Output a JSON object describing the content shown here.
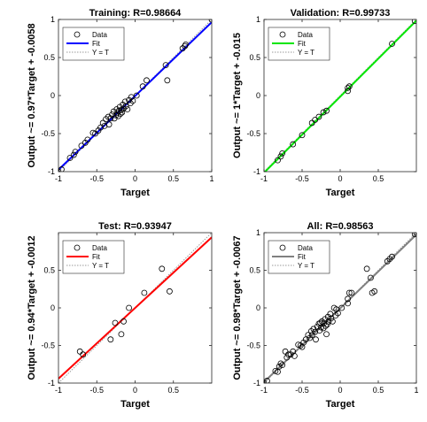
{
  "chart_data": [
    {
      "type": "scatter",
      "title": "Training: R=0.98664",
      "xlabel": "Target",
      "ylabel": "Output ~= 0.97*Target + -0.0058",
      "xlim": [
        -1,
        1
      ],
      "ylim": [
        -1,
        1
      ],
      "xticks": [
        "-1",
        "-0.5",
        "0",
        "0.5",
        "1"
      ],
      "yticks": [
        "-1",
        "-0.5",
        "0",
        "0.5",
        "1"
      ],
      "fit_color": "#0000ff",
      "fit": {
        "slope": 0.97,
        "intercept": -0.0058
      },
      "legend": [
        "Data",
        "Fit",
        "Y = T"
      ],
      "points": [
        [
          -1,
          -1
        ],
        [
          -0.96,
          -0.97
        ],
        [
          -0.85,
          -0.82
        ],
        [
          -0.8,
          -0.78
        ],
        [
          -0.78,
          -0.74
        ],
        [
          -0.7,
          -0.66
        ],
        [
          -0.65,
          -0.62
        ],
        [
          -0.62,
          -0.58
        ],
        [
          -0.55,
          -0.49
        ],
        [
          -0.52,
          -0.5
        ],
        [
          -0.48,
          -0.46
        ],
        [
          -0.45,
          -0.42
        ],
        [
          -0.42,
          -0.36
        ],
        [
          -0.4,
          -0.4
        ],
        [
          -0.38,
          -0.31
        ],
        [
          -0.35,
          -0.28
        ],
        [
          -0.34,
          -0.38
        ],
        [
          -0.32,
          -0.3
        ],
        [
          -0.3,
          -0.25
        ],
        [
          -0.28,
          -0.21
        ],
        [
          -0.27,
          -0.3
        ],
        [
          -0.25,
          -0.26
        ],
        [
          -0.24,
          -0.18
        ],
        [
          -0.23,
          -0.23
        ],
        [
          -0.22,
          -0.27
        ],
        [
          -0.21,
          -0.2
        ],
        [
          -0.2,
          -0.15
        ],
        [
          -0.19,
          -0.24
        ],
        [
          -0.18,
          -0.19
        ],
        [
          -0.17,
          -0.22
        ],
        [
          -0.16,
          -0.12
        ],
        [
          -0.15,
          -0.17
        ],
        [
          -0.13,
          -0.08
        ],
        [
          -0.12,
          -0.14
        ],
        [
          -0.1,
          -0.18
        ],
        [
          -0.08,
          -0.06
        ],
        [
          -0.06,
          -0.1
        ],
        [
          -0.05,
          -0.02
        ],
        [
          -0.03,
          -0.07
        ],
        [
          0.02,
          0.0
        ],
        [
          0.1,
          0.12
        ],
        [
          0.15,
          0.2
        ],
        [
          0.4,
          0.4
        ],
        [
          0.42,
          0.2
        ],
        [
          0.62,
          0.62
        ],
        [
          0.65,
          0.65
        ],
        [
          0.66,
          0.67
        ],
        [
          1,
          1
        ]
      ]
    },
    {
      "type": "scatter",
      "title": "Validation: R=0.99733",
      "xlabel": "Target",
      "ylabel": "Output ~= 1*Target + -0.015",
      "xlim": [
        -1,
        1
      ],
      "ylim": [
        -1,
        1
      ],
      "xticks": [
        "-1",
        "-0.5",
        "0",
        "0.5"
      ],
      "yticks": [
        "-1",
        "-0.5",
        "0",
        "0.5",
        "1"
      ],
      "fit_color": "#00e600",
      "fit": {
        "slope": 1,
        "intercept": -0.015
      },
      "legend": [
        "Data",
        "Fit",
        "Y = T"
      ],
      "points": [
        [
          -0.82,
          -0.85
        ],
        [
          -0.78,
          -0.8
        ],
        [
          -0.76,
          -0.76
        ],
        [
          -0.62,
          -0.64
        ],
        [
          -0.5,
          -0.52
        ],
        [
          -0.37,
          -0.36
        ],
        [
          -0.33,
          -0.32
        ],
        [
          -0.28,
          -0.28
        ],
        [
          -0.22,
          -0.22
        ],
        [
          -0.18,
          -0.2
        ],
        [
          0.1,
          0.06
        ],
        [
          0.1,
          0.1
        ],
        [
          0.12,
          0.12
        ],
        [
          0.68,
          0.68
        ],
        [
          0.98,
          0.98
        ]
      ]
    },
    {
      "type": "scatter",
      "title": "Test: R=0.93947",
      "xlabel": "Target",
      "ylabel": "Output ~= 0.94*Target + -0.0012",
      "xlim": [
        -1,
        1
      ],
      "ylim": [
        -1,
        1
      ],
      "xticks": [
        "-1",
        "-0.5",
        "0",
        "0.5"
      ],
      "yticks": [
        "-1",
        "-0.5",
        "0",
        "0.5"
      ],
      "fit_color": "#ff0000",
      "fit": {
        "slope": 0.94,
        "intercept": -0.0012
      },
      "legend": [
        "Data",
        "Fit",
        "Y = T"
      ],
      "points": [
        [
          -0.72,
          -0.58
        ],
        [
          -0.68,
          -0.62
        ],
        [
          -0.32,
          -0.42
        ],
        [
          -0.26,
          -0.2
        ],
        [
          -0.18,
          -0.35
        ],
        [
          -0.15,
          -0.18
        ],
        [
          -0.08,
          0.0
        ],
        [
          0.12,
          0.2
        ],
        [
          0.35,
          0.52
        ],
        [
          0.45,
          0.22
        ]
      ]
    },
    {
      "type": "scatter",
      "title": "All: R=0.98563",
      "xlabel": "Target",
      "ylabel": "Output ~= 0.98*Target + -0.0067",
      "xlim": [
        -1,
        1
      ],
      "ylim": [
        -1,
        1
      ],
      "xticks": [
        "-1",
        "-0.5",
        "0",
        "0.5",
        "1"
      ],
      "yticks": [
        "-1",
        "-0.5",
        "0",
        "0.5",
        "1"
      ],
      "fit_color": "#808080",
      "fit": {
        "slope": 0.98,
        "intercept": -0.0067
      },
      "legend": [
        "Data",
        "Fit",
        "Y = T"
      ],
      "points": [
        [
          -1,
          -1
        ],
        [
          -0.96,
          -0.97
        ],
        [
          -0.85,
          -0.84
        ],
        [
          -0.82,
          -0.85
        ],
        [
          -0.8,
          -0.78
        ],
        [
          -0.78,
          -0.74
        ],
        [
          -0.76,
          -0.76
        ],
        [
          -0.72,
          -0.58
        ],
        [
          -0.7,
          -0.66
        ],
        [
          -0.68,
          -0.62
        ],
        [
          -0.65,
          -0.62
        ],
        [
          -0.62,
          -0.58
        ],
        [
          -0.6,
          -0.64
        ],
        [
          -0.55,
          -0.49
        ],
        [
          -0.52,
          -0.5
        ],
        [
          -0.5,
          -0.52
        ],
        [
          -0.48,
          -0.46
        ],
        [
          -0.45,
          -0.42
        ],
        [
          -0.42,
          -0.36
        ],
        [
          -0.4,
          -0.4
        ],
        [
          -0.38,
          -0.31
        ],
        [
          -0.37,
          -0.36
        ],
        [
          -0.35,
          -0.28
        ],
        [
          -0.33,
          -0.32
        ],
        [
          -0.32,
          -0.42
        ],
        [
          -0.3,
          -0.25
        ],
        [
          -0.28,
          -0.21
        ],
        [
          -0.27,
          -0.3
        ],
        [
          -0.26,
          -0.2
        ],
        [
          -0.25,
          -0.26
        ],
        [
          -0.24,
          -0.18
        ],
        [
          -0.22,
          -0.27
        ],
        [
          -0.21,
          -0.2
        ],
        [
          -0.2,
          -0.15
        ],
        [
          -0.19,
          -0.24
        ],
        [
          -0.18,
          -0.35
        ],
        [
          -0.17,
          -0.22
        ],
        [
          -0.16,
          -0.12
        ],
        [
          -0.15,
          -0.18
        ],
        [
          -0.13,
          -0.08
        ],
        [
          -0.12,
          -0.14
        ],
        [
          -0.1,
          -0.18
        ],
        [
          -0.08,
          0.0
        ],
        [
          -0.06,
          -0.1
        ],
        [
          -0.05,
          -0.02
        ],
        [
          -0.03,
          -0.07
        ],
        [
          0.02,
          0.0
        ],
        [
          0.1,
          0.06
        ],
        [
          0.1,
          0.12
        ],
        [
          0.12,
          0.2
        ],
        [
          0.15,
          0.2
        ],
        [
          0.35,
          0.52
        ],
        [
          0.4,
          0.4
        ],
        [
          0.42,
          0.2
        ],
        [
          0.45,
          0.22
        ],
        [
          0.62,
          0.62
        ],
        [
          0.65,
          0.65
        ],
        [
          0.68,
          0.68
        ],
        [
          0.98,
          0.98
        ],
        [
          1,
          1
        ]
      ]
    }
  ]
}
